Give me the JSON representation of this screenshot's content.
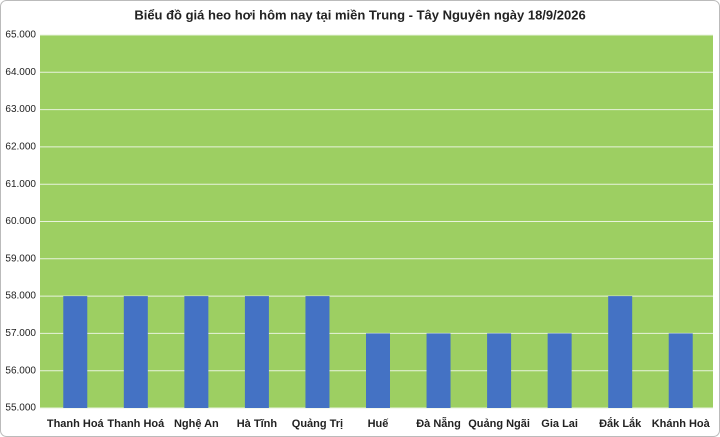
{
  "chart_data": {
    "type": "bar",
    "title": "Biểu đồ giá heo hơi hôm nay tại miền Trung - Tây Nguyên ngày 18/9/2026",
    "categories": [
      "Thanh Hoá",
      "Thanh Hoá",
      "Nghệ An",
      "Hà Tĩnh",
      "Quảng Trị",
      "Huế",
      "Đà Nẵng",
      "Quảng Ngãi",
      "Gia Lai",
      "Đắk Lắk",
      "Khánh Hoà"
    ],
    "values": [
      58000,
      58000,
      58000,
      58000,
      58000,
      57000,
      57000,
      57000,
      57000,
      58000,
      57000
    ],
    "color": "#4472c4",
    "ylim": [
      55000,
      65000
    ],
    "yticks": [
      {
        "value": 55000,
        "label": "55.000"
      },
      {
        "value": 56000,
        "label": "56.000"
      },
      {
        "value": 57000,
        "label": "57.000"
      },
      {
        "value": 58000,
        "label": "58.000"
      },
      {
        "value": 59000,
        "label": "59.000"
      },
      {
        "value": 60000,
        "label": "60.000"
      },
      {
        "value": 61000,
        "label": "61.000"
      },
      {
        "value": 62000,
        "label": "62.000"
      },
      {
        "value": 63000,
        "label": "63.000"
      },
      {
        "value": 64000,
        "label": "64.000"
      },
      {
        "value": 65000,
        "label": "65.000"
      }
    ],
    "grid": true
  }
}
